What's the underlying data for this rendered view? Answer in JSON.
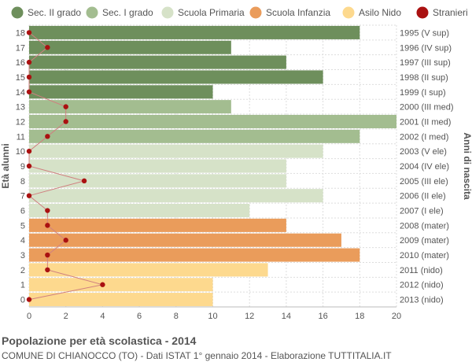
{
  "colors": {
    "sec_ii": "#6e8f5c",
    "sec_i": "#a3bd90",
    "primaria": "#d6e2c8",
    "infanzia": "#ea9c5b",
    "nido": "#fdd98e",
    "stranieri": "#aa1111",
    "stranieri_line": "#d08080",
    "grid": "#dddddd",
    "text": "#555555"
  },
  "chart_data": {
    "type": "bar",
    "orientation": "horizontal",
    "legend_position": "top",
    "legend": [
      {
        "key": "sec_ii",
        "label": "Sec. II grado",
        "marker": "circle"
      },
      {
        "key": "sec_i",
        "label": "Sec. I grado",
        "marker": "circle"
      },
      {
        "key": "primaria",
        "label": "Scuola Primaria",
        "marker": "circle"
      },
      {
        "key": "infanzia",
        "label": "Scuola Infanzia",
        "marker": "circle"
      },
      {
        "key": "nido",
        "label": "Asilo Nido",
        "marker": "circle"
      },
      {
        "key": "stranieri",
        "label": "Stranieri",
        "marker": "circle"
      }
    ],
    "ylabel_left": "Età alunni",
    "ylabel_right": "Anni di nascita",
    "xlim": [
      0,
      20
    ],
    "xticks": [
      0,
      2,
      4,
      6,
      8,
      10,
      12,
      14,
      16,
      18,
      20
    ],
    "grid": true,
    "rows": [
      {
        "age": "18",
        "year": "1995 (V sup)",
        "value": 18,
        "group": "sec_ii",
        "stranieri": 0
      },
      {
        "age": "17",
        "year": "1996 (IV sup)",
        "value": 11,
        "group": "sec_ii",
        "stranieri": 1
      },
      {
        "age": "16",
        "year": "1997 (III sup)",
        "value": 14,
        "group": "sec_ii",
        "stranieri": 0
      },
      {
        "age": "15",
        "year": "1998 (II sup)",
        "value": 16,
        "group": "sec_ii",
        "stranieri": 0
      },
      {
        "age": "14",
        "year": "1999 (I sup)",
        "value": 10,
        "group": "sec_ii",
        "stranieri": 0
      },
      {
        "age": "13",
        "year": "2000 (III med)",
        "value": 11,
        "group": "sec_i",
        "stranieri": 2
      },
      {
        "age": "12",
        "year": "2001 (II med)",
        "value": 20,
        "group": "sec_i",
        "stranieri": 2
      },
      {
        "age": "11",
        "year": "2002 (I med)",
        "value": 18,
        "group": "sec_i",
        "stranieri": 1
      },
      {
        "age": "10",
        "year": "2003 (V ele)",
        "value": 16,
        "group": "primaria",
        "stranieri": 0
      },
      {
        "age": "9",
        "year": "2004 (IV ele)",
        "value": 14,
        "group": "primaria",
        "stranieri": 0
      },
      {
        "age": "8",
        "year": "2005 (III ele)",
        "value": 14,
        "group": "primaria",
        "stranieri": 3
      },
      {
        "age": "7",
        "year": "2006 (II ele)",
        "value": 16,
        "group": "primaria",
        "stranieri": 0
      },
      {
        "age": "6",
        "year": "2007 (I ele)",
        "value": 12,
        "group": "primaria",
        "stranieri": 1
      },
      {
        "age": "5",
        "year": "2008 (mater)",
        "value": 14,
        "group": "infanzia",
        "stranieri": 1
      },
      {
        "age": "4",
        "year": "2009 (mater)",
        "value": 17,
        "group": "infanzia",
        "stranieri": 2
      },
      {
        "age": "3",
        "year": "2010 (mater)",
        "value": 18,
        "group": "infanzia",
        "stranieri": 1
      },
      {
        "age": "2",
        "year": "2011 (nido)",
        "value": 13,
        "group": "nido",
        "stranieri": 1
      },
      {
        "age": "1",
        "year": "2012 (nido)",
        "value": 10,
        "group": "nido",
        "stranieri": 4
      },
      {
        "age": "0",
        "year": "2013 (nido)",
        "value": 10,
        "group": "nido",
        "stranieri": 0
      }
    ]
  },
  "footer": {
    "title": "Popolazione per età scolastica - 2014",
    "subtitle": "COMUNE DI CHIANOCCO (TO) - Dati ISTAT 1° gennaio 2014 - Elaborazione TUTTITALIA.IT"
  }
}
